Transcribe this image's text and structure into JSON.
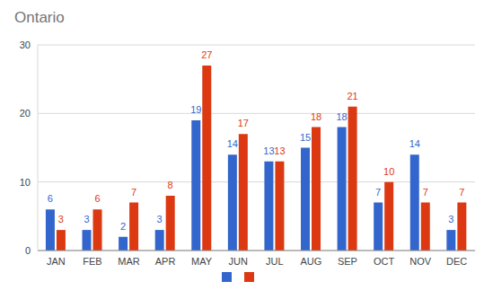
{
  "chart_data": {
    "type": "bar",
    "title": "Ontario",
    "categories": [
      "JAN",
      "FEB",
      "MAR",
      "APR",
      "MAY",
      "JUN",
      "JUL",
      "AUG",
      "SEP",
      "OCT",
      "NOV",
      "DEC"
    ],
    "series": [
      {
        "color": "#3366cc",
        "values": [
          6,
          3,
          2,
          3,
          19,
          14,
          13,
          15,
          18,
          7,
          14,
          3
        ]
      },
      {
        "color": "#dc3912",
        "values": [
          3,
          6,
          7,
          8,
          27,
          17,
          13,
          18,
          21,
          10,
          7,
          7
        ]
      }
    ],
    "ylim": [
      0,
      30
    ],
    "yticks": [
      0,
      10,
      20,
      30
    ],
    "grid": true,
    "legend": "bottom",
    "data_labels": true
  }
}
